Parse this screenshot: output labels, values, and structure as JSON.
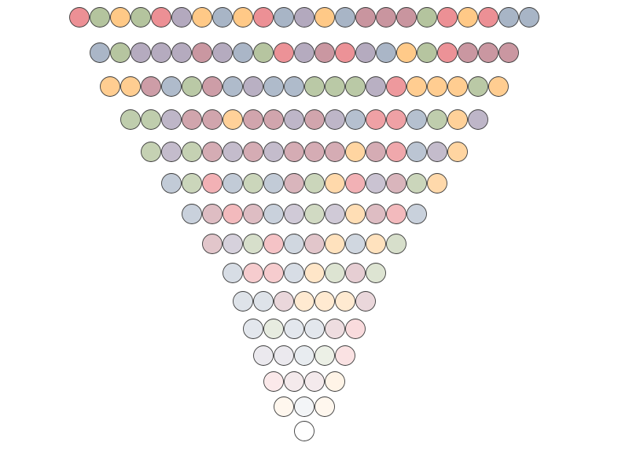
{
  "palette": {
    "R": "#ec9095",
    "G": "#b4c49e",
    "O": "#ffc987",
    "B": "#a8b5c6",
    "P": "#b3a9be",
    "K": "#c9959f"
  },
  "rows": [
    {
      "opacity": 1.0,
      "dots": [
        "R",
        "G",
        "O",
        "G",
        "R",
        "P",
        "O",
        "B",
        "O",
        "R",
        "B",
        "P",
        "O",
        "B",
        "K",
        "K",
        "K",
        "G",
        "R",
        "O",
        "R",
        "B",
        "B"
      ]
    },
    {
      "opacity": 0.98,
      "dots": [
        "B",
        "G",
        "P",
        "P",
        "P",
        "K",
        "P",
        "B",
        "G",
        "R",
        "P",
        "K",
        "R",
        "P",
        "B",
        "O",
        "G",
        "R",
        "K",
        "K",
        "K"
      ]
    },
    {
      "opacity": 0.92,
      "dots": [
        "O",
        "O",
        "K",
        "B",
        "G",
        "K",
        "B",
        "P",
        "B",
        "B",
        "G",
        "G",
        "G",
        "P",
        "R",
        "O",
        "O",
        "O",
        "G",
        "O"
      ]
    },
    {
      "opacity": 0.85,
      "dots": [
        "G",
        "G",
        "P",
        "K",
        "K",
        "O",
        "K",
        "K",
        "P",
        "K",
        "P",
        "B",
        "R",
        "R",
        "B",
        "G",
        "O",
        "P"
      ]
    },
    {
      "opacity": 0.78,
      "dots": [
        "G",
        "P",
        "G",
        "K",
        "P",
        "K",
        "P",
        "K",
        "K",
        "K",
        "O",
        "K",
        "R",
        "B",
        "P",
        "O"
      ]
    },
    {
      "opacity": 0.7,
      "dots": [
        "B",
        "G",
        "R",
        "B",
        "G",
        "B",
        "K",
        "G",
        "O",
        "R",
        "P",
        "K",
        "G",
        "O"
      ]
    },
    {
      "opacity": 0.62,
      "dots": [
        "B",
        "K",
        "R",
        "K",
        "B",
        "P",
        "G",
        "P",
        "O",
        "K",
        "R",
        "B"
      ]
    },
    {
      "opacity": 0.54,
      "dots": [
        "K",
        "P",
        "G",
        "R",
        "B",
        "K",
        "O",
        "B",
        "O",
        "G"
      ]
    },
    {
      "opacity": 0.46,
      "dots": [
        "B",
        "R",
        "R",
        "B",
        "O",
        "G",
        "K",
        "G"
      ]
    },
    {
      "opacity": 0.38,
      "dots": [
        "B",
        "B",
        "K",
        "O",
        "O",
        "O",
        "K"
      ]
    },
    {
      "opacity": 0.32,
      "dots": [
        "B",
        "G",
        "B",
        "B",
        "K",
        "R"
      ]
    },
    {
      "opacity": 0.26,
      "dots": [
        "P",
        "P",
        "B",
        "G",
        "R"
      ]
    },
    {
      "opacity": 0.2,
      "dots": [
        "R",
        "K",
        "K",
        "O"
      ]
    },
    {
      "opacity": 0.14,
      "dots": [
        "O",
        "B",
        "O"
      ]
    },
    {
      "opacity": 0.0,
      "dots": [
        "B"
      ]
    }
  ]
}
